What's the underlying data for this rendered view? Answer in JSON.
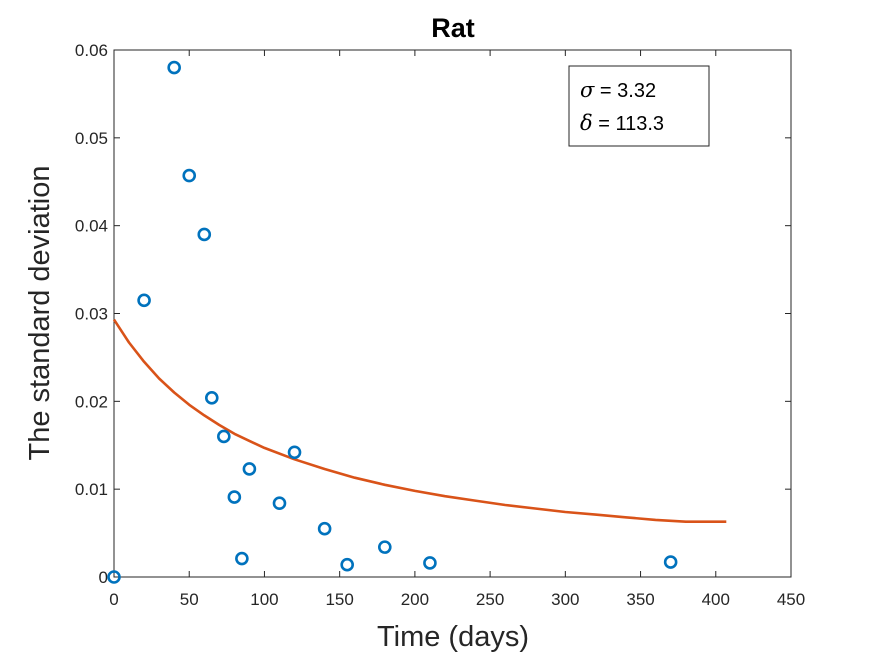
{
  "chart_data": {
    "type": "scatter",
    "title": "Rat",
    "xlabel": "Time (days)",
    "ylabel": "The standard deviation",
    "xlim": [
      0,
      450
    ],
    "ylim": [
      0,
      0.06
    ],
    "xticks": [
      "0",
      "50",
      "100",
      "150",
      "200",
      "250",
      "300",
      "350",
      "400",
      "450"
    ],
    "yticks": [
      "0",
      "0.01",
      "0.02",
      "0.03",
      "0.04",
      "0.05",
      "0.06"
    ],
    "grid": false,
    "series": [
      {
        "kind": "scatter",
        "color": "#0072BD",
        "marker": "circle",
        "points": [
          [
            0,
            0.0
          ],
          [
            20,
            0.0315
          ],
          [
            40,
            0.058
          ],
          [
            50,
            0.0457
          ],
          [
            60,
            0.039
          ],
          [
            65,
            0.0204
          ],
          [
            73,
            0.016
          ],
          [
            80,
            0.0091
          ],
          [
            85,
            0.0021
          ],
          [
            90,
            0.0123
          ],
          [
            110,
            0.0084
          ],
          [
            120,
            0.0142
          ],
          [
            140,
            0.0055
          ],
          [
            155,
            0.0014
          ],
          [
            180,
            0.0034
          ],
          [
            210,
            0.0016
          ],
          [
            370,
            0.0017
          ]
        ]
      },
      {
        "kind": "line",
        "color": "#D95319",
        "x": [
          0,
          10,
          20,
          30,
          40,
          50,
          60,
          70,
          80,
          90,
          100,
          120,
          140,
          160,
          180,
          200,
          220,
          240,
          260,
          280,
          300,
          320,
          340,
          360,
          380,
          407
        ],
        "y": [
          0.0293,
          0.0267,
          0.0245,
          0.0226,
          0.021,
          0.0196,
          0.0184,
          0.0173,
          0.0163,
          0.0155,
          0.0147,
          0.0134,
          0.0123,
          0.0113,
          0.0105,
          0.0098,
          0.0092,
          0.0087,
          0.0082,
          0.0078,
          0.0074,
          0.0071,
          0.0068,
          0.0065,
          0.0063,
          0.0063
        ]
      }
    ],
    "legend": {
      "placement": "top-right",
      "entries": [
        {
          "symbol": "σ",
          "text": " = 3.32"
        },
        {
          "symbol": "δ",
          "text": " = 113.3"
        }
      ]
    }
  }
}
